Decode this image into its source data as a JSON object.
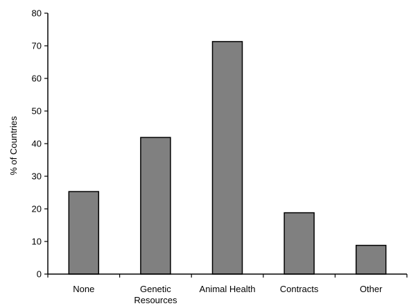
{
  "chart_data": {
    "type": "bar",
    "title": "",
    "xlabel": "",
    "ylabel": "% of Countries",
    "categories": [
      "None",
      "Genetic Resources",
      "Animal Health",
      "Contracts",
      "Other"
    ],
    "category_lines": [
      [
        "None"
      ],
      [
        "Genetic",
        "Resources"
      ],
      [
        "Animal Health"
      ],
      [
        "Contracts"
      ],
      [
        "Other"
      ]
    ],
    "values": [
      25.3,
      41.9,
      71.3,
      18.8,
      8.8
    ],
    "ylim": [
      0,
      80
    ],
    "yticks": [
      0,
      10,
      20,
      30,
      40,
      50,
      60,
      70,
      80
    ],
    "grid": false,
    "legend": "none"
  },
  "colors": {
    "bar_fill": "#808080",
    "bar_stroke": "#000000",
    "axis": "#000000",
    "background": "#ffffff"
  }
}
